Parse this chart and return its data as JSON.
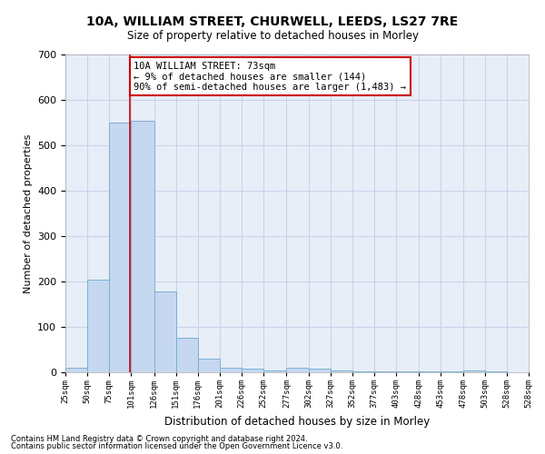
{
  "title1": "10A, WILLIAM STREET, CHURWELL, LEEDS, LS27 7RE",
  "title2": "Size of property relative to detached houses in Morley",
  "xlabel": "Distribution of detached houses by size in Morley",
  "ylabel": "Number of detached properties",
  "footer1": "Contains HM Land Registry data © Crown copyright and database right 2024.",
  "footer2": "Contains public sector information licensed under the Open Government Licence v3.0.",
  "annotation_line1": "10A WILLIAM STREET: 73sqm",
  "annotation_line2": "← 9% of detached houses are smaller (144)",
  "annotation_line3": "90% of semi-detached houses are larger (1,483) →",
  "red_line_x": 73,
  "categories": [
    "25sqm",
    "50sqm",
    "75sqm",
    "101sqm",
    "126sqm",
    "151sqm",
    "176sqm",
    "201sqm",
    "226sqm",
    "252sqm",
    "277sqm",
    "302sqm",
    "327sqm",
    "352sqm",
    "377sqm",
    "403sqm",
    "428sqm",
    "453sqm",
    "478sqm",
    "503sqm",
    "528sqm"
  ],
  "bin_starts": [
    0,
    25,
    50,
    75,
    101,
    126,
    151,
    176,
    201,
    226,
    252,
    277,
    302,
    327,
    352,
    377,
    403,
    428,
    453,
    478,
    503
  ],
  "bin_ends": [
    25,
    50,
    75,
    101,
    126,
    151,
    176,
    201,
    226,
    252,
    277,
    302,
    327,
    352,
    377,
    403,
    428,
    453,
    478,
    503,
    528
  ],
  "values": [
    10,
    205,
    550,
    555,
    178,
    77,
    30,
    10,
    8,
    5,
    10,
    8,
    5,
    3,
    3,
    3,
    2,
    2,
    5,
    2,
    1
  ],
  "bar_color": "#c5d8f0",
  "bar_edgecolor": "#7ab0d4",
  "red_line_color": "#cc0000",
  "grid_color": "#c8d4e8",
  "bg_color": "#e8eef8",
  "annotation_box_color": "#ffffff",
  "annotation_box_edgecolor": "#cc0000",
  "ylim": [
    0,
    700
  ],
  "yticks": [
    0,
    100,
    200,
    300,
    400,
    500,
    600,
    700
  ]
}
